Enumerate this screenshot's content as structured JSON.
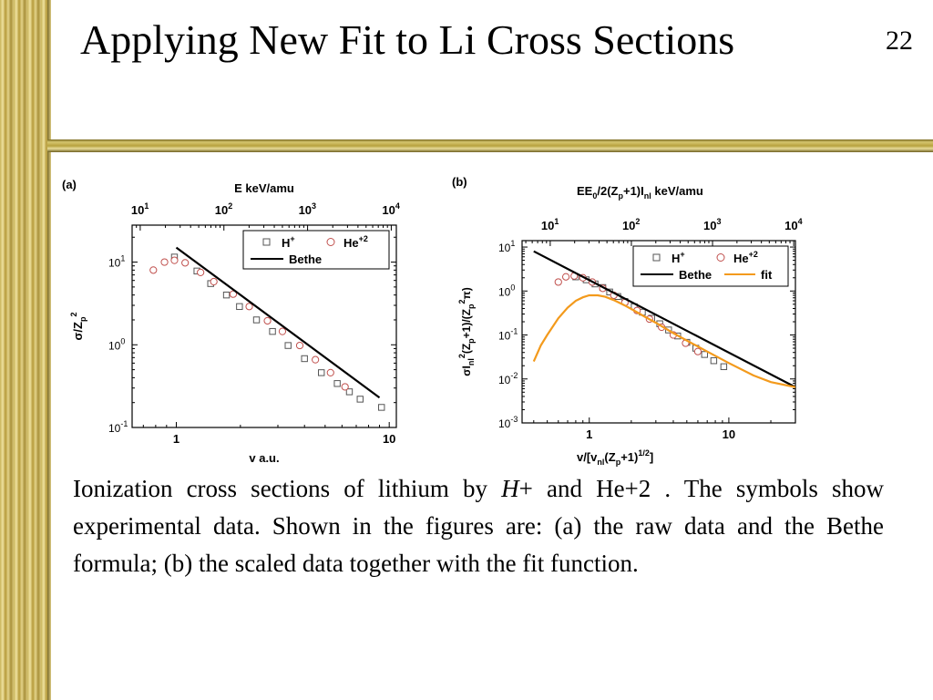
{
  "slide": {
    "title": "Applying New Fit to Li Cross Sections",
    "number": "22"
  },
  "caption": {
    "part1": "Ionization cross sections of lithium by ",
    "ion_h": "H",
    "part2": "+ and He+2 . The symbols show experimental data. Shown in the figures are: (a) the raw data and the Bethe formula; (b) the scaled data together with the fit function."
  },
  "colors": {
    "border_gold": "#c9b45a",
    "bethe_line": "#000000",
    "fit_line": "#f39a1c",
    "he_symbol": "#c0504d",
    "h_symbol": "#555555"
  },
  "chart_data": [
    {
      "type": "scatter",
      "panel_label": "(a)",
      "title": "",
      "xlabel": "v a.u.",
      "ylabel": "σ/Z_p²",
      "top_xlabel": "E keV/amu",
      "x_scale": "log",
      "y_scale": "log",
      "xlim": [
        0.62,
        10.8
      ],
      "ylim": [
        0.1,
        28
      ],
      "top_xlim": [
        8,
        11500
      ],
      "x_ticks": [
        1,
        10
      ],
      "y_ticks": [
        0.1,
        1,
        10
      ],
      "top_ticks": [
        10,
        100,
        1000,
        10000
      ],
      "x_tick_labels": [
        "1",
        "10"
      ],
      "y_tick_labels": [
        "10",
        "10",
        "10"
      ],
      "y_tick_exps": [
        "-1",
        "0",
        "1"
      ],
      "top_tick_labels": [
        "10",
        "10",
        "10",
        "10"
      ],
      "top_tick_exps": [
        "1",
        "2",
        "3",
        "4"
      ],
      "legend_position": "top-right",
      "series": [
        {
          "name": "H",
          "name_sup": "+",
          "marker": "square",
          "x": [
            0.98,
            1.25,
            1.45,
            1.72,
            1.98,
            2.38,
            2.83,
            3.35,
            4.0,
            4.8,
            5.7,
            6.5,
            7.3,
            9.2
          ],
          "y": [
            11.5,
            7.8,
            5.5,
            4.0,
            2.9,
            2.0,
            1.45,
            0.98,
            0.68,
            0.46,
            0.34,
            0.27,
            0.22,
            0.175
          ]
        },
        {
          "name": "He",
          "name_sup": "+2",
          "marker": "circle",
          "x": [
            0.78,
            0.88,
            0.98,
            1.1,
            1.3,
            1.5,
            1.85,
            2.2,
            2.68,
            3.15,
            3.8,
            4.5,
            5.3,
            6.2
          ],
          "y": [
            8.0,
            10.0,
            10.5,
            9.8,
            7.5,
            5.8,
            4.1,
            2.9,
            1.95,
            1.45,
            0.98,
            0.66,
            0.46,
            0.31
          ]
        },
        {
          "name": "Bethe",
          "style": "line",
          "x": [
            1.0,
            9.0
          ],
          "y": [
            15.0,
            0.23
          ]
        }
      ]
    },
    {
      "type": "line",
      "panel_label": "(b)",
      "title": "",
      "xlabel": "v/[v_nl(Z_p+1)^1/2]",
      "ylabel": "σ I_nl²(Z_p+1)/(Z_p²π)",
      "top_xlabel": "EE₀/2(Z_p+1)I_nl keV/amu",
      "x_scale": "log",
      "y_scale": "log",
      "xlim": [
        0.33,
        30
      ],
      "ylim": [
        0.001,
        14
      ],
      "top_xlim": [
        4.5,
        10500
      ],
      "x_ticks": [
        1,
        10
      ],
      "y_ticks": [
        0.001,
        0.01,
        0.1,
        1,
        10
      ],
      "top_ticks": [
        10,
        100,
        1000,
        10000
      ],
      "x_tick_labels": [
        "1",
        "10"
      ],
      "y_tick_labels": [
        "10",
        "10",
        "10",
        "10",
        "10"
      ],
      "y_tick_exps": [
        "-3",
        "-2",
        "-1",
        "0",
        "1"
      ],
      "top_tick_labels": [
        "10",
        "10",
        "10",
        "10"
      ],
      "top_tick_exps": [
        "1",
        "2",
        "3",
        "4"
      ],
      "legend_position": "top-right",
      "series": [
        {
          "name": "H",
          "name_sup": "+",
          "marker": "square",
          "x": [
            0.8,
            0.95,
            1.1,
            1.25,
            1.4,
            1.6,
            1.8,
            2.1,
            2.4,
            2.8,
            3.2,
            3.7,
            4.3,
            5.0,
            5.8,
            6.7,
            7.8,
            9.2
          ],
          "y": [
            2.1,
            1.8,
            1.45,
            1.2,
            0.95,
            0.75,
            0.58,
            0.44,
            0.33,
            0.24,
            0.18,
            0.13,
            0.095,
            0.068,
            0.05,
            0.036,
            0.026,
            0.019
          ]
        },
        {
          "name": "He",
          "name_sup": "+2",
          "marker": "circle",
          "x": [
            0.6,
            0.68,
            0.78,
            0.9,
            1.05,
            1.25,
            1.5,
            1.8,
            2.2,
            2.7,
            3.3,
            4.0,
            4.9,
            6.0
          ],
          "y": [
            1.6,
            2.1,
            2.2,
            2.0,
            1.6,
            1.15,
            0.8,
            0.55,
            0.36,
            0.23,
            0.15,
            0.1,
            0.065,
            0.042
          ]
        },
        {
          "name": "Bethe",
          "style": "line",
          "x": [
            0.4,
            30
          ],
          "y": [
            8.0,
            0.0065
          ]
        },
        {
          "name": "fit",
          "style": "line",
          "x": [
            0.4,
            0.45,
            0.5,
            0.6,
            0.7,
            0.8,
            0.9,
            1.0,
            1.15,
            1.3,
            1.5,
            1.75,
            2.0,
            2.5,
            3.0,
            4.0,
            5.0,
            7.0,
            10,
            15,
            20,
            30
          ],
          "y": [
            0.025,
            0.058,
            0.1,
            0.24,
            0.42,
            0.6,
            0.72,
            0.8,
            0.8,
            0.74,
            0.62,
            0.49,
            0.39,
            0.26,
            0.19,
            0.11,
            0.075,
            0.042,
            0.023,
            0.012,
            0.0085,
            0.0065
          ]
        }
      ]
    }
  ]
}
